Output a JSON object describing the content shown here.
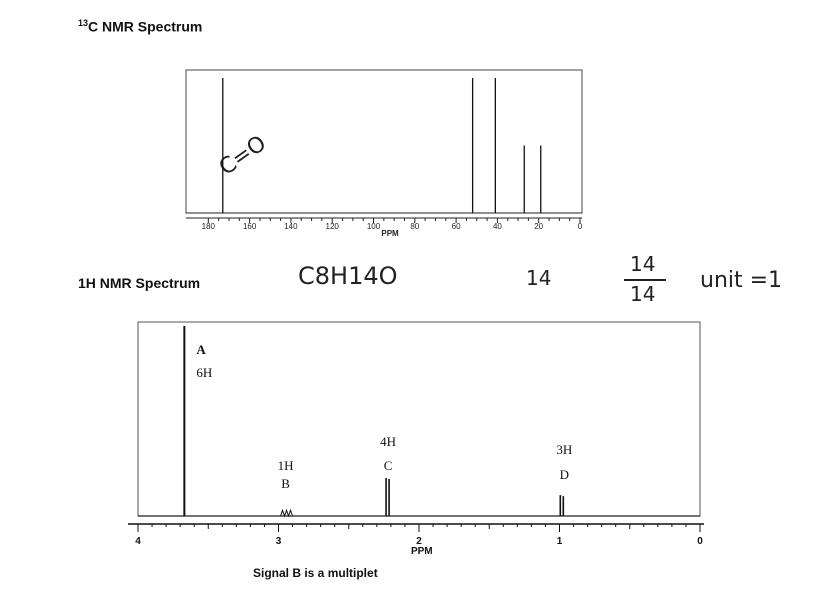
{
  "c13": {
    "heading_sup": "13",
    "heading_text": "C NMR Spectrum"
  },
  "h1": {
    "heading_text": "1H NMR Spectrum"
  },
  "annotations": {
    "co_note": "C=O",
    "formula": "C8H14O",
    "count": "14",
    "frac_num": "14",
    "frac_den": "14",
    "unit_text": "unit =1"
  },
  "footnote": "Signal B is a multiplet",
  "chart_data": [
    {
      "type": "line",
      "title": "13C NMR Spectrum",
      "xlabel": "PPM",
      "xlim": [
        185,
        0
      ],
      "x_ticks": [
        180,
        160,
        140,
        120,
        100,
        80,
        60,
        40,
        20,
        0
      ],
      "peaks": [
        {
          "ppm": 173,
          "intensity": 1.0
        },
        {
          "ppm": 52,
          "intensity": 1.0
        },
        {
          "ppm": 41,
          "intensity": 1.0
        },
        {
          "ppm": 27,
          "intensity": 0.5
        },
        {
          "ppm": 19,
          "intensity": 0.5
        }
      ]
    },
    {
      "type": "line",
      "title": "1H NMR Spectrum",
      "xlabel": "PPM",
      "xlim": [
        4,
        0
      ],
      "x_ticks": [
        4,
        3,
        2,
        1,
        0
      ],
      "peaks": [
        {
          "ppm": 3.67,
          "intensity": 1.0,
          "label": "A",
          "integration": "6H"
        },
        {
          "ppm": 2.95,
          "intensity": 0.03,
          "label": "B",
          "integration": "1H"
        },
        {
          "ppm": 2.22,
          "intensity": 0.2,
          "label": "C",
          "integration": "4H"
        },
        {
          "ppm": 0.98,
          "intensity": 0.11,
          "label": "D",
          "integration": "3H"
        }
      ]
    }
  ]
}
